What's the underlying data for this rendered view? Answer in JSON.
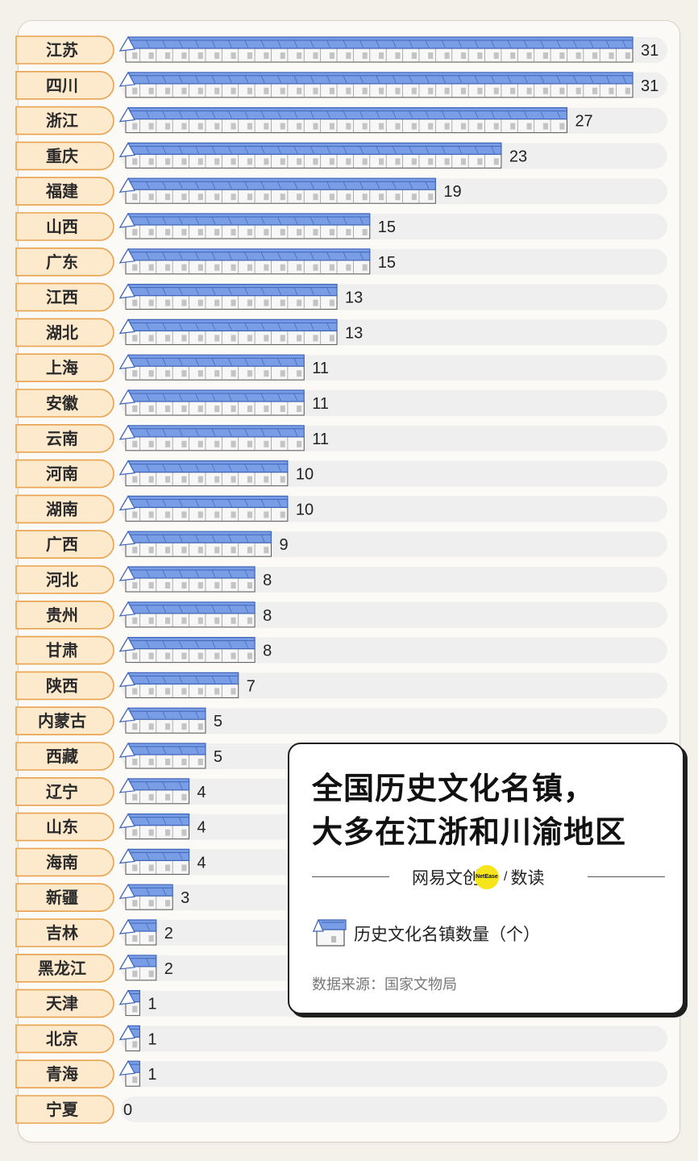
{
  "chart_data": {
    "type": "bar",
    "orientation": "horizontal",
    "title": "全国历史文化名镇，大多在江浙和川渝地区",
    "title_lines": [
      "全国历史文化名镇，",
      "大多在江浙和川渝地区"
    ],
    "legend": "历史文化名镇数量（个）",
    "source": "数据来源：国家文物局",
    "xlim": [
      0,
      31
    ],
    "categories": [
      "江苏",
      "四川",
      "浙江",
      "重庆",
      "福建",
      "山西",
      "广东",
      "江西",
      "湖北",
      "上海",
      "安徽",
      "云南",
      "河南",
      "湖南",
      "广西",
      "河北",
      "贵州",
      "甘肃",
      "陕西",
      "内蒙古",
      "西藏",
      "辽宁",
      "山东",
      "海南",
      "新疆",
      "吉林",
      "黑龙江",
      "天津",
      "北京",
      "青海",
      "宁夏"
    ],
    "values": [
      31,
      31,
      27,
      23,
      19,
      15,
      15,
      13,
      13,
      11,
      11,
      11,
      10,
      10,
      9,
      8,
      8,
      8,
      7,
      5,
      5,
      4,
      4,
      4,
      3,
      2,
      2,
      1,
      1,
      1,
      0
    ]
  },
  "brand": {
    "name": "网易文创",
    "badge": "NetEase",
    "sub": "数读"
  },
  "colors": {
    "roof": "#7a9ee6",
    "roof_dark": "#3f65b8",
    "wall": "#f7f7f7",
    "outline": "#555555",
    "label_bg": "#fde9cc",
    "label_border": "#e9a24e",
    "track": "#efefef"
  }
}
